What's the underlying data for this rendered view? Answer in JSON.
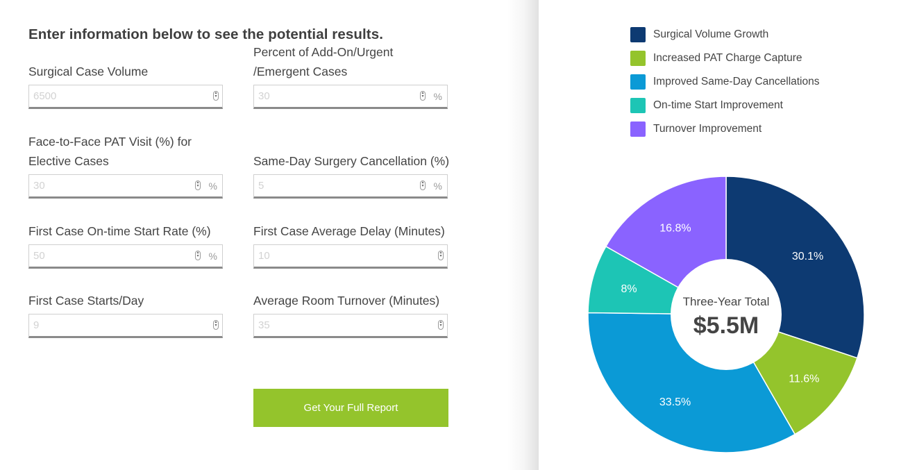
{
  "heading": "Enter information below to see the potential results.",
  "fields": [
    {
      "label": "Surgical Case Volume",
      "value": "6500",
      "unit": ""
    },
    {
      "label": "Percent of Add-On/Urgent /Emergent Cases",
      "value": "30",
      "unit": "%"
    },
    {
      "label": "Face-to-Face PAT Visit (%) for Elective Cases",
      "value": "30",
      "unit": "%"
    },
    {
      "label": "Same-Day Surgery Cancellation (%)",
      "value": "5",
      "unit": "%"
    },
    {
      "label": "First Case On-time Start Rate (%)",
      "value": "50",
      "unit": "%"
    },
    {
      "label": "First Case Average Delay (Minutes)",
      "value": "10",
      "unit": ""
    },
    {
      "label": "First Case Starts/Day",
      "value": "9",
      "unit": ""
    },
    {
      "label": "Average Room Turnover (Minutes)",
      "value": "35",
      "unit": ""
    }
  ],
  "button": {
    "label": "Get Your Full Report",
    "color": "#94c42c"
  },
  "chart_data": {
    "type": "pie",
    "donut": true,
    "center_label": "Three-Year Total",
    "center_value": "$5.5M",
    "legend_position": "top",
    "slices": [
      {
        "name": "Surgical Volume Growth",
        "value": 30.1,
        "label": "30.1%",
        "color": "#0d3a72"
      },
      {
        "name": "Increased PAT Charge Capture",
        "value": 11.6,
        "label": "11.6%",
        "color": "#94c42c"
      },
      {
        "name": "Improved Same-Day Cancellations",
        "value": 33.5,
        "label": "33.5%",
        "color": "#0b9ad6"
      },
      {
        "name": "On-time Start Improvement",
        "value": 8,
        "label": "8%",
        "color": "#1dc5b5"
      },
      {
        "name": "Turnover Improvement",
        "value": 16.8,
        "label": "16.8%",
        "color": "#8a63ff"
      }
    ]
  }
}
